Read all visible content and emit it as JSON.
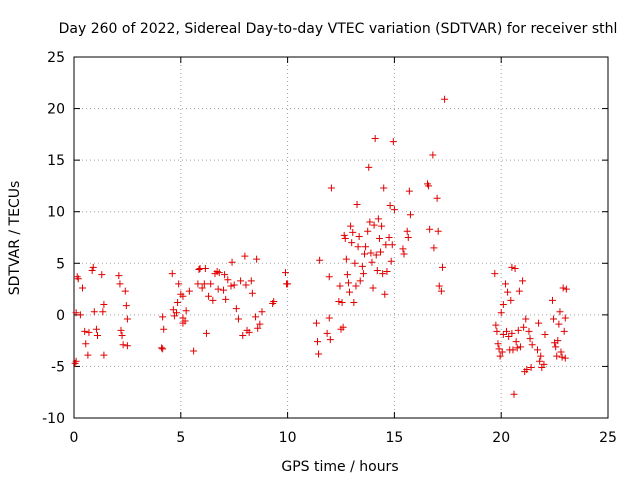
{
  "chart_data": {
    "type": "scatter",
    "title": "Day 260 of 2022, Sidereal Day-to-day VTEC variation (SDTVAR) for receiver sthl",
    "xlabel": "GPS time / hours",
    "ylabel": "SDTVAR / TECUs",
    "xlim": [
      0,
      25
    ],
    "ylim": [
      -10,
      25
    ],
    "xticks": [
      0,
      5,
      10,
      15,
      20,
      25
    ],
    "yticks": [
      -10,
      -5,
      0,
      5,
      10,
      15,
      20,
      25
    ],
    "grid": true,
    "marker": "+",
    "color": "#e00000",
    "series": [
      {
        "name": "SDTVAR",
        "points": [
          [
            0.05,
            -4.7
          ],
          [
            0.1,
            -4.5
          ],
          [
            0.1,
            0.2
          ],
          [
            0.15,
            3.7
          ],
          [
            0.2,
            3.5
          ],
          [
            0.3,
            0.0
          ],
          [
            0.4,
            2.6
          ],
          [
            0.5,
            -1.6
          ],
          [
            0.55,
            -2.8
          ],
          [
            0.65,
            -3.9
          ],
          [
            0.7,
            -1.7
          ],
          [
            0.85,
            4.3
          ],
          [
            0.9,
            4.6
          ],
          [
            0.95,
            0.3
          ],
          [
            1.05,
            -1.4
          ],
          [
            1.1,
            -2.0
          ],
          [
            1.3,
            3.9
          ],
          [
            1.35,
            0.3
          ],
          [
            1.4,
            -3.9
          ],
          [
            1.4,
            1.0
          ],
          [
            2.1,
            3.8
          ],
          [
            2.15,
            3.0
          ],
          [
            2.2,
            -1.5
          ],
          [
            2.25,
            -2.0
          ],
          [
            2.3,
            -2.9
          ],
          [
            2.4,
            2.3
          ],
          [
            2.45,
            0.9
          ],
          [
            2.5,
            -3.0
          ],
          [
            2.5,
            -0.4
          ],
          [
            4.1,
            -3.2
          ],
          [
            4.15,
            -3.3
          ],
          [
            4.15,
            -0.2
          ],
          [
            4.2,
            -1.4
          ],
          [
            4.6,
            4.0
          ],
          [
            4.65,
            0.5
          ],
          [
            4.7,
            -0.1
          ],
          [
            4.8,
            0.2
          ],
          [
            4.85,
            1.2
          ],
          [
            4.9,
            3.0
          ],
          [
            5.0,
            2.0
          ],
          [
            5.1,
            1.8
          ],
          [
            5.1,
            -0.8
          ],
          [
            5.1,
            -0.3
          ],
          [
            5.2,
            -0.6
          ],
          [
            5.25,
            0.4
          ],
          [
            5.4,
            2.3
          ],
          [
            5.6,
            -3.5
          ],
          [
            5.8,
            3.0
          ],
          [
            5.85,
            4.4
          ],
          [
            5.9,
            4.5
          ],
          [
            6.0,
            2.6
          ],
          [
            6.1,
            3.0
          ],
          [
            6.15,
            4.5
          ],
          [
            6.2,
            -1.8
          ],
          [
            6.3,
            1.8
          ],
          [
            6.4,
            3.0
          ],
          [
            6.5,
            1.4
          ],
          [
            6.6,
            4.0
          ],
          [
            6.7,
            4.2
          ],
          [
            6.75,
            2.5
          ],
          [
            6.8,
            4.1
          ],
          [
            7.0,
            2.4
          ],
          [
            7.05,
            3.9
          ],
          [
            7.1,
            1.5
          ],
          [
            7.2,
            3.4
          ],
          [
            7.35,
            2.8
          ],
          [
            7.4,
            5.1
          ],
          [
            7.5,
            2.9
          ],
          [
            7.6,
            0.6
          ],
          [
            7.7,
            -0.4
          ],
          [
            7.8,
            3.3
          ],
          [
            7.9,
            -2.0
          ],
          [
            8.0,
            5.7
          ],
          [
            8.05,
            2.9
          ],
          [
            8.1,
            -1.5
          ],
          [
            8.2,
            -1.7
          ],
          [
            8.3,
            3.3
          ],
          [
            8.35,
            2.1
          ],
          [
            8.5,
            -0.2
          ],
          [
            8.55,
            5.4
          ],
          [
            8.6,
            -1.3
          ],
          [
            8.7,
            -0.9
          ],
          [
            8.8,
            0.3
          ],
          [
            9.3,
            1.1
          ],
          [
            9.35,
            1.3
          ],
          [
            9.9,
            4.1
          ],
          [
            9.95,
            3.0
          ],
          [
            10.0,
            3.0
          ],
          [
            11.35,
            -0.8
          ],
          [
            11.4,
            -2.6
          ],
          [
            11.45,
            -3.8
          ],
          [
            11.5,
            5.3
          ],
          [
            11.85,
            -1.8
          ],
          [
            11.95,
            3.7
          ],
          [
            11.95,
            -0.3
          ],
          [
            12.0,
            -2.4
          ],
          [
            12.05,
            12.3
          ],
          [
            12.4,
            1.3
          ],
          [
            12.45,
            2.8
          ],
          [
            12.5,
            -1.4
          ],
          [
            12.55,
            1.2
          ],
          [
            12.6,
            -1.2
          ],
          [
            12.65,
            7.7
          ],
          [
            12.7,
            7.4
          ],
          [
            12.75,
            5.4
          ],
          [
            12.8,
            3.9
          ],
          [
            12.85,
            3.1
          ],
          [
            12.9,
            2.2
          ],
          [
            12.95,
            8.6
          ],
          [
            13.0,
            7.0
          ],
          [
            13.05,
            8.0
          ],
          [
            13.1,
            1.2
          ],
          [
            13.15,
            5.0
          ],
          [
            13.2,
            2.8
          ],
          [
            13.25,
            10.7
          ],
          [
            13.3,
            6.6
          ],
          [
            13.35,
            7.6
          ],
          [
            13.4,
            3.3
          ],
          [
            13.5,
            4.7
          ],
          [
            13.55,
            4.0
          ],
          [
            13.6,
            5.9
          ],
          [
            13.65,
            6.6
          ],
          [
            13.75,
            8.1
          ],
          [
            13.8,
            14.3
          ],
          [
            13.85,
            9.0
          ],
          [
            13.9,
            6.0
          ],
          [
            13.95,
            5.1
          ],
          [
            14.0,
            2.6
          ],
          [
            14.05,
            8.7
          ],
          [
            14.1,
            17.1
          ],
          [
            14.15,
            5.8
          ],
          [
            14.2,
            4.3
          ],
          [
            14.25,
            9.3
          ],
          [
            14.3,
            7.4
          ],
          [
            14.35,
            6.1
          ],
          [
            14.4,
            8.6
          ],
          [
            14.45,
            4.0
          ],
          [
            14.5,
            12.3
          ],
          [
            14.55,
            2.0
          ],
          [
            14.6,
            6.8
          ],
          [
            14.65,
            4.2
          ],
          [
            14.75,
            7.5
          ],
          [
            14.8,
            10.6
          ],
          [
            14.85,
            5.2
          ],
          [
            14.9,
            6.8
          ],
          [
            14.95,
            16.8
          ],
          [
            15.0,
            10.2
          ],
          [
            15.4,
            6.4
          ],
          [
            15.45,
            5.9
          ],
          [
            15.6,
            8.1
          ],
          [
            15.65,
            7.5
          ],
          [
            15.7,
            12.0
          ],
          [
            15.75,
            9.7
          ],
          [
            16.55,
            12.7
          ],
          [
            16.6,
            12.5
          ],
          [
            16.65,
            8.3
          ],
          [
            16.8,
            15.5
          ],
          [
            16.85,
            6.5
          ],
          [
            17.0,
            11.3
          ],
          [
            17.05,
            8.1
          ],
          [
            17.1,
            2.8
          ],
          [
            17.2,
            2.3
          ],
          [
            17.25,
            4.6
          ],
          [
            17.35,
            20.9
          ],
          [
            19.7,
            4.0
          ],
          [
            19.75,
            -1.0
          ],
          [
            19.8,
            -1.6
          ],
          [
            19.85,
            -2.8
          ],
          [
            19.9,
            -3.3
          ],
          [
            19.95,
            -4.0
          ],
          [
            20.0,
            0.2
          ],
          [
            20.05,
            -3.6
          ],
          [
            20.1,
            1.0
          ],
          [
            20.1,
            -1.9
          ],
          [
            20.2,
            3.0
          ],
          [
            20.25,
            -1.6
          ],
          [
            20.3,
            2.2
          ],
          [
            20.35,
            -2.1
          ],
          [
            20.4,
            -3.4
          ],
          [
            20.45,
            1.4
          ],
          [
            20.5,
            -1.8
          ],
          [
            20.5,
            4.6
          ],
          [
            20.55,
            -3.4
          ],
          [
            20.6,
            -7.7
          ],
          [
            20.65,
            4.5
          ],
          [
            20.7,
            -2.6
          ],
          [
            20.75,
            -3.2
          ],
          [
            20.8,
            -1.5
          ],
          [
            20.85,
            2.3
          ],
          [
            20.9,
            -3.1
          ],
          [
            21.0,
            3.3
          ],
          [
            21.05,
            -1.2
          ],
          [
            21.1,
            -5.5
          ],
          [
            21.15,
            -0.4
          ],
          [
            21.2,
            -5.3
          ],
          [
            21.3,
            -1.6
          ],
          [
            21.35,
            -2.3
          ],
          [
            21.4,
            -5.1
          ],
          [
            21.45,
            -2.9
          ],
          [
            21.7,
            -3.4
          ],
          [
            21.75,
            -0.8
          ],
          [
            21.8,
            -4.5
          ],
          [
            21.85,
            -4.0
          ],
          [
            21.9,
            -5.1
          ],
          [
            22.0,
            -4.8
          ],
          [
            22.05,
            -1.9
          ],
          [
            22.4,
            1.4
          ],
          [
            22.45,
            -0.4
          ],
          [
            22.5,
            -2.7
          ],
          [
            22.55,
            -3.1
          ],
          [
            22.6,
            -4.0
          ],
          [
            22.65,
            -2.5
          ],
          [
            22.7,
            -0.9
          ],
          [
            22.75,
            0.3
          ],
          [
            22.8,
            -3.6
          ],
          [
            22.85,
            -4.1
          ],
          [
            22.9,
            2.6
          ],
          [
            22.95,
            -1.6
          ],
          [
            23.0,
            -4.2
          ],
          [
            23.0,
            -0.3
          ],
          [
            23.05,
            2.5
          ]
        ]
      }
    ]
  }
}
